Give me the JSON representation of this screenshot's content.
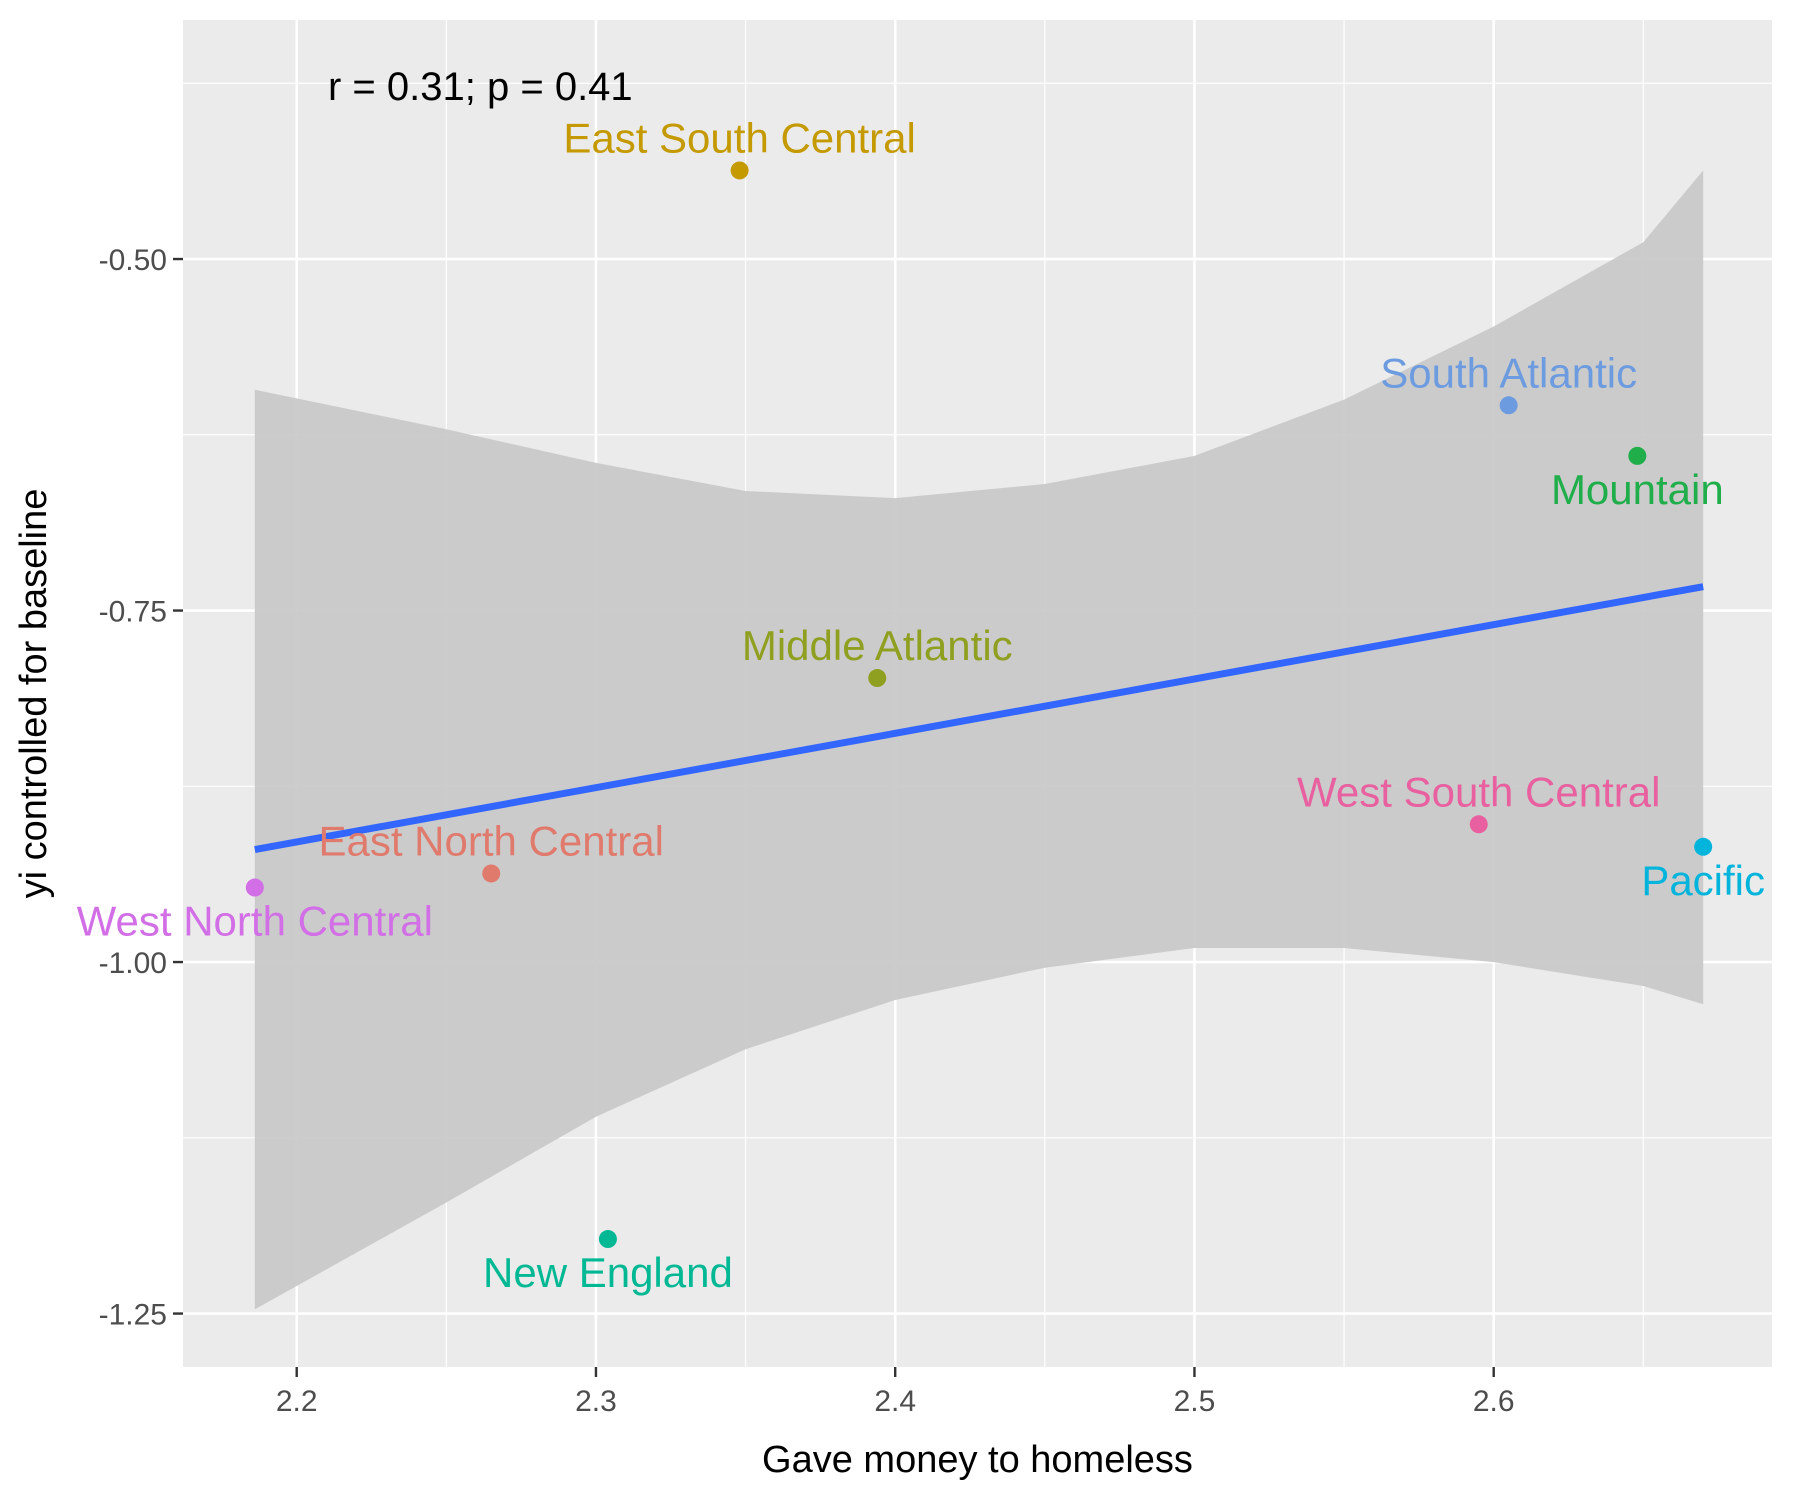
{
  "chart_data": {
    "type": "scatter",
    "title": "",
    "xlabel": "Gave money to homeless",
    "ylabel": "yi controlled for baseline",
    "xlim": [
      2.162,
      2.693
    ],
    "ylim": [
      -1.288,
      -0.33
    ],
    "x_ticks": [
      2.2,
      2.3,
      2.4,
      2.5,
      2.6
    ],
    "x_tick_labels": [
      "2.2",
      "2.3",
      "2.4",
      "2.5",
      "2.6"
    ],
    "y_ticks": [
      -0.5,
      -0.75,
      -1.0,
      -1.25
    ],
    "y_tick_labels": [
      "-0.50",
      "-0.75",
      "-1.00",
      "-1.25"
    ],
    "grid": true,
    "annotation": "r = 0.31; p = 0.41",
    "points": [
      {
        "name": "East South Central",
        "x": 2.348,
        "y": -0.437,
        "color": "#C49A00",
        "label_pos": "above"
      },
      {
        "name": "South Atlantic",
        "x": 2.605,
        "y": -0.604,
        "color": "#6C9BE0",
        "label_pos": "above"
      },
      {
        "name": "Mountain",
        "x": 2.648,
        "y": -0.64,
        "color": "#1FAE4A",
        "label_pos": "below"
      },
      {
        "name": "Middle Atlantic",
        "x": 2.394,
        "y": -0.798,
        "color": "#8FA020",
        "label_pos": "above"
      },
      {
        "name": "West South Central",
        "x": 2.595,
        "y": -0.902,
        "color": "#E8609F",
        "label_pos": "above"
      },
      {
        "name": "Pacific",
        "x": 2.67,
        "y": -0.918,
        "color": "#00B4DC",
        "label_pos": "below"
      },
      {
        "name": "East North Central",
        "x": 2.265,
        "y": -0.937,
        "color": "#E07A6C",
        "label_pos": "above"
      },
      {
        "name": "West North Central",
        "x": 2.186,
        "y": -0.947,
        "color": "#D26EE6",
        "label_pos": "below"
      },
      {
        "name": "New England",
        "x": 2.304,
        "y": -1.197,
        "color": "#00B894",
        "label_pos": "below"
      }
    ],
    "fit_line": {
      "x": [
        2.186,
        2.67
      ],
      "y": [
        -0.92,
        -0.733
      ],
      "color": "#3366FF"
    },
    "confidence_band": {
      "x": [
        2.186,
        2.25,
        2.3,
        2.35,
        2.4,
        2.45,
        2.5,
        2.55,
        2.6,
        2.65,
        2.67
      ],
      "upper": [
        -0.593,
        -0.621,
        -0.645,
        -0.665,
        -0.67,
        -0.66,
        -0.64,
        -0.6,
        -0.548,
        -0.488,
        -0.437
      ],
      "lower": [
        -1.247,
        -1.171,
        -1.11,
        -1.062,
        -1.027,
        -1.004,
        -0.99,
        -0.99,
        -1.0,
        -1.017,
        -1.03
      ],
      "color": "#C9C9C9"
    },
    "colors": {
      "panel_bg": "#EBEBEB",
      "grid_major": "#FFFFFF"
    }
  }
}
